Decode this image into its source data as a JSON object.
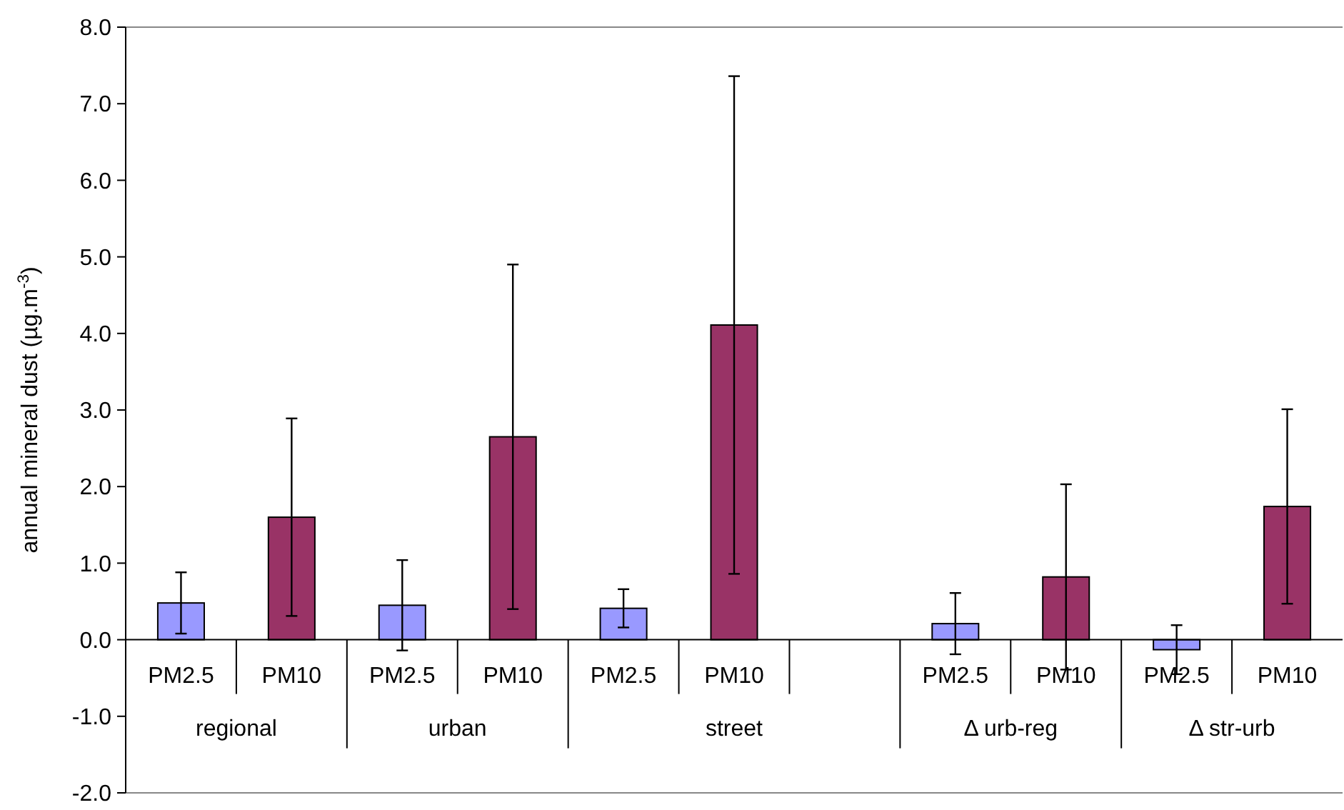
{
  "chart_data": {
    "type": "bar",
    "ylabel": "annual mineral dust (µg.m$^{-3}$)",
    "categories": [
      "PM2.5",
      "PM10",
      "PM2.5",
      "PM10",
      "PM2.5",
      "PM10",
      null,
      "PM2.5",
      "PM10",
      "PM2.5",
      "PM10"
    ],
    "values": [
      0.48,
      1.6,
      0.45,
      2.65,
      0.41,
      4.11,
      null,
      0.21,
      0.82,
      -0.13,
      1.74
    ],
    "colors": [
      "#9999ff",
      "#993366",
      "#9999ff",
      "#993366",
      "#9999ff",
      "#993366",
      null,
      "#9999ff",
      "#993366",
      "#9999ff",
      "#993366"
    ],
    "errors": [
      0.4,
      1.29,
      0.59,
      2.25,
      0.25,
      3.25,
      null,
      0.4,
      1.21,
      0.32,
      1.27
    ],
    "ylim": [
      -2,
      8
    ],
    "yticks": [
      {
        "value": -2,
        "label": "-2.0"
      },
      {
        "value": -1,
        "label": "-1.0"
      },
      {
        "value": 0,
        "label": "0.0"
      },
      {
        "value": 1,
        "label": "1.0"
      },
      {
        "value": 2,
        "label": "2.0"
      },
      {
        "value": 3,
        "label": "3.0"
      },
      {
        "value": 4,
        "label": "4.0"
      },
      {
        "value": 5,
        "label": "5.0"
      },
      {
        "value": 6,
        "label": "6.0"
      },
      {
        "value": 7,
        "label": "7.0"
      },
      {
        "value": 8,
        "label": "8.0"
      }
    ],
    "annotations": [
      "regional",
      "urban",
      "street",
      "Δ urb-reg",
      "Δ str-urb"
    ],
    "grid": false
  }
}
